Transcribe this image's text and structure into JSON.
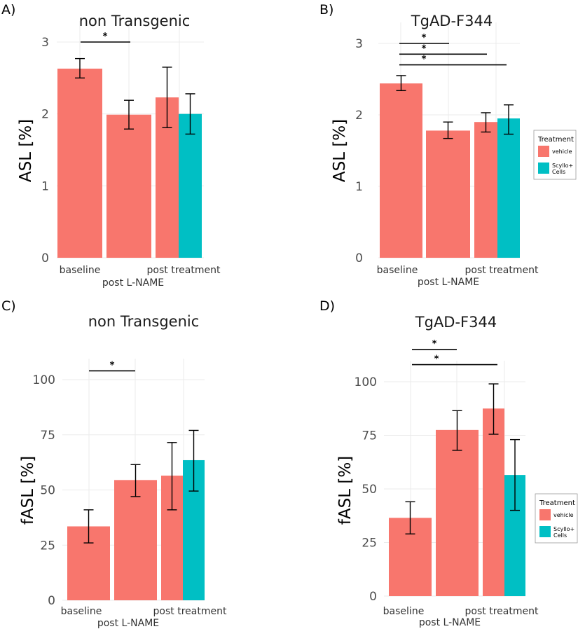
{
  "colors": {
    "vehicle": "#F8766D",
    "scyllo": "#00BFC4"
  },
  "chart_data": [
    {
      "panel_label": "A)",
      "type": "bar",
      "title": "non Transgenic",
      "ylabel": "ASL [%]",
      "xlabel": "post L-NAME",
      "ylim": [
        0,
        3
      ],
      "yticks": [
        0,
        1,
        2,
        3
      ],
      "categories": [
        "baseline",
        "post L-NAME",
        "post treatment"
      ],
      "bars": [
        {
          "category": "baseline",
          "series": "vehicle",
          "value": 2.63,
          "err_low": 2.5,
          "err_high": 2.77
        },
        {
          "category": "post L-NAME",
          "series": "vehicle",
          "value": 1.99,
          "err_low": 1.79,
          "err_high": 2.19
        },
        {
          "category": "post treatment",
          "series": "vehicle",
          "value": 2.23,
          "err_low": 1.81,
          "err_high": 2.65
        },
        {
          "category": "post treatment",
          "series": "Scyllo + Cells",
          "value": 2.0,
          "err_low": 1.72,
          "err_high": 2.28
        }
      ],
      "significance": [
        {
          "from": "baseline",
          "to": "post L-NAME",
          "y": 3.0,
          "label": "*"
        }
      ],
      "legend": null
    },
    {
      "panel_label": "B)",
      "type": "bar",
      "title": "TgAD-F344",
      "ylabel": "ASL [%]",
      "xlabel": "post L-NAME",
      "ylim": [
        0,
        3
      ],
      "yticks": [
        0,
        1,
        2,
        3
      ],
      "categories": [
        "baseline",
        "post L-NAME",
        "post treatment"
      ],
      "bars": [
        {
          "category": "baseline",
          "series": "vehicle",
          "value": 2.44,
          "err_low": 2.34,
          "err_high": 2.55
        },
        {
          "category": "post L-NAME",
          "series": "vehicle",
          "value": 1.78,
          "err_low": 1.67,
          "err_high": 1.9
        },
        {
          "category": "post treatment",
          "series": "vehicle",
          "value": 1.9,
          "err_low": 1.76,
          "err_high": 2.03
        },
        {
          "category": "post treatment",
          "series": "Scyllo + Cells",
          "value": 1.95,
          "err_low": 1.73,
          "err_high": 2.14
        }
      ],
      "significance": [
        {
          "from": "baseline",
          "to": "post L-NAME",
          "y": 3.0,
          "label": "*"
        },
        {
          "from": "baseline",
          "to": "post treatment vehicle",
          "y": 2.85,
          "label": "*"
        },
        {
          "from": "baseline",
          "to": "post treatment Scyllo",
          "y": 2.7,
          "label": "*"
        }
      ],
      "legend": {
        "title": "Treatment",
        "entries": [
          {
            "label": "vehicle",
            "series": "vehicle"
          },
          {
            "label": "Scyllo + Cells",
            "series": "Scyllo + Cells"
          }
        ]
      }
    },
    {
      "panel_label": "C)",
      "type": "bar",
      "title": "non Transgenic",
      "ylabel": "fASL [%]",
      "xlabel": "post L-NAME",
      "ylim": [
        0,
        100
      ],
      "yticks": [
        0,
        25,
        50,
        75,
        100
      ],
      "categories": [
        "baseline",
        "post L-NAME",
        "post treatment"
      ],
      "bars": [
        {
          "category": "baseline",
          "series": "vehicle",
          "value": 33.5,
          "err_low": 26,
          "err_high": 41
        },
        {
          "category": "post L-NAME",
          "series": "vehicle",
          "value": 54.5,
          "err_low": 47,
          "err_high": 61.5
        },
        {
          "category": "post treatment",
          "series": "vehicle",
          "value": 56.5,
          "err_low": 41,
          "err_high": 71.5
        },
        {
          "category": "post treatment",
          "series": "Scyllo + Cells",
          "value": 63.5,
          "err_low": 49.5,
          "err_high": 77
        }
      ],
      "significance": [
        {
          "from": "baseline",
          "to": "post L-NAME",
          "y": 104,
          "label": "*"
        }
      ],
      "legend": null
    },
    {
      "panel_label": "D)",
      "type": "bar",
      "title": "TgAD-F344",
      "ylabel": "fASL [%]",
      "xlabel": "post L-NAME",
      "ylim": [
        0,
        100
      ],
      "yticks": [
        0,
        25,
        50,
        75,
        100
      ],
      "categories": [
        "baseline",
        "post L-NAME",
        "post treatment"
      ],
      "bars": [
        {
          "category": "baseline",
          "series": "vehicle",
          "value": 36.5,
          "err_low": 29,
          "err_high": 44
        },
        {
          "category": "post L-NAME",
          "series": "vehicle",
          "value": 77.5,
          "err_low": 68,
          "err_high": 86.5
        },
        {
          "category": "post treatment",
          "series": "vehicle",
          "value": 87.5,
          "err_low": 75.5,
          "err_high": 99
        },
        {
          "category": "post treatment",
          "series": "Scyllo + Cells",
          "value": 56.5,
          "err_low": 40,
          "err_high": 73
        }
      ],
      "significance": [
        {
          "from": "baseline",
          "to": "post L-NAME",
          "y": 115,
          "label": "*"
        },
        {
          "from": "baseline",
          "to": "post treatment vehicle",
          "y": 108,
          "label": "*"
        }
      ],
      "legend": {
        "title": "Treatment",
        "entries": [
          {
            "label": "vehicle",
            "series": "vehicle"
          },
          {
            "label": "Scyllo + Cells",
            "series": "Scyllo + Cells"
          }
        ]
      }
    }
  ]
}
